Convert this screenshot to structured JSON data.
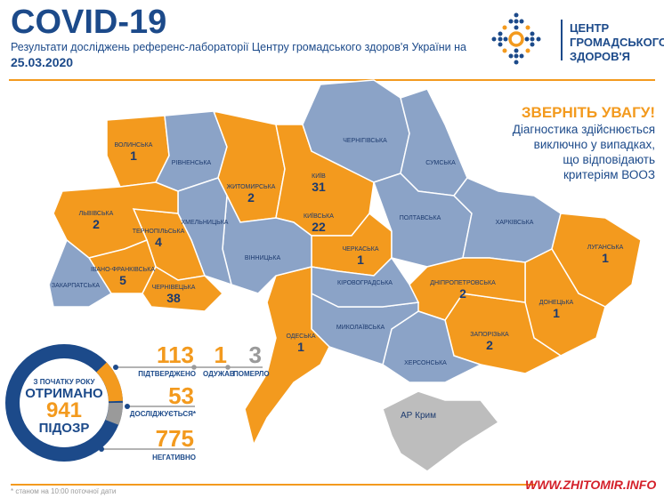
{
  "header": {
    "title": "COVID-19",
    "subtitle": "Результати досліджень референс-лабораторії Центру громадського здоров'я України на",
    "date": "25.03.2020"
  },
  "org": {
    "line1": "ЦЕНТР",
    "line2": "ГРОМАДСЬКОГО",
    "line3": "ЗДОРОВ'Я"
  },
  "notice": {
    "title": "ЗВЕРНІТЬ УВАГУ!",
    "lines": [
      "Діагностика здійснюється",
      "виключно у випадках,",
      "що відповідають",
      "критеріям ВООЗ"
    ]
  },
  "colors": {
    "positive": "#f39a1e",
    "none": "#8ba3c7",
    "crimea": "#bdbdbd",
    "text": "#1c4a8a"
  },
  "regions": [
    {
      "name": "ВОЛИНСЬКА",
      "count": "1",
      "status": "positive"
    },
    {
      "name": "РІВНЕНСЬКА",
      "status": "none"
    },
    {
      "name": "ЖИТОМИРСЬКА",
      "count": "2",
      "status": "positive"
    },
    {
      "name": "КИЇВ",
      "count": "31",
      "status": "positive"
    },
    {
      "name": "КИЇВСЬКА",
      "count": "22",
      "status": "positive"
    },
    {
      "name": "ЧЕРКАСЬКА",
      "count": "1",
      "status": "positive"
    },
    {
      "name": "ЧЕРНІГІВСЬКА",
      "status": "none"
    },
    {
      "name": "СУМСЬКА",
      "status": "none"
    },
    {
      "name": "ПОЛТАВСЬКА",
      "status": "none"
    },
    {
      "name": "ХАРКІВСЬКА",
      "status": "none"
    },
    {
      "name": "ЛУГАНСЬКА",
      "count": "1",
      "status": "positive"
    },
    {
      "name": "ДОНЕЦЬКА",
      "count": "1",
      "status": "positive"
    },
    {
      "name": "ЗАПОРІЗЬКА",
      "count": "2",
      "status": "positive"
    },
    {
      "name": "ДНІПРОПЕТРОВСЬКА",
      "count": "2",
      "status": "positive"
    },
    {
      "name": "ХЕРСОНСЬКА",
      "status": "none"
    },
    {
      "name": "МИКОЛАЇВСЬКА",
      "status": "none"
    },
    {
      "name": "КІРОВОГРАДСЬКА",
      "status": "none"
    },
    {
      "name": "ОДЕСЬКА",
      "count": "1",
      "status": "positive"
    },
    {
      "name": "ВІННИЦЬКА",
      "status": "none"
    },
    {
      "name": "ХМЕЛЬНИЦЬКА",
      "status": "none"
    },
    {
      "name": "ТЕРНОПІЛЬСЬКА",
      "count": "4",
      "status": "positive"
    },
    {
      "name": "ЛЬВІВСЬКА",
      "count": "2",
      "status": "positive"
    },
    {
      "name": "ІВАНО-ФРАНКІВСЬКА",
      "count": "5",
      "status": "positive"
    },
    {
      "name": "ЧЕРНІВЕЦЬКА",
      "count": "38",
      "status": "positive"
    },
    {
      "name": "ЗАКАРПАТСЬКА",
      "status": "none"
    },
    {
      "name": "АР Крим",
      "status": "crimea"
    }
  ],
  "summary": {
    "since": "З ПОЧАТКУ РОКУ",
    "received": "ОТРИМАНО",
    "total": "941",
    "suspected": "ПІДОЗР",
    "confirmed": "113",
    "confirmed_label": "ПІДТВЕРДЖЕНО",
    "recovered": "1",
    "recovered_label": "ОДУЖАВ",
    "died": "3",
    "died_label": "ПОМЕРЛО",
    "testing": "53",
    "testing_label": "ДОСЛІДЖУЄТЬСЯ*",
    "negative": "775",
    "negative_label": "НЕГАТИВНО"
  },
  "footnote": "* станом на 10:00 поточної дати",
  "watermark": "WWW.ZHITOMIR.INFO"
}
